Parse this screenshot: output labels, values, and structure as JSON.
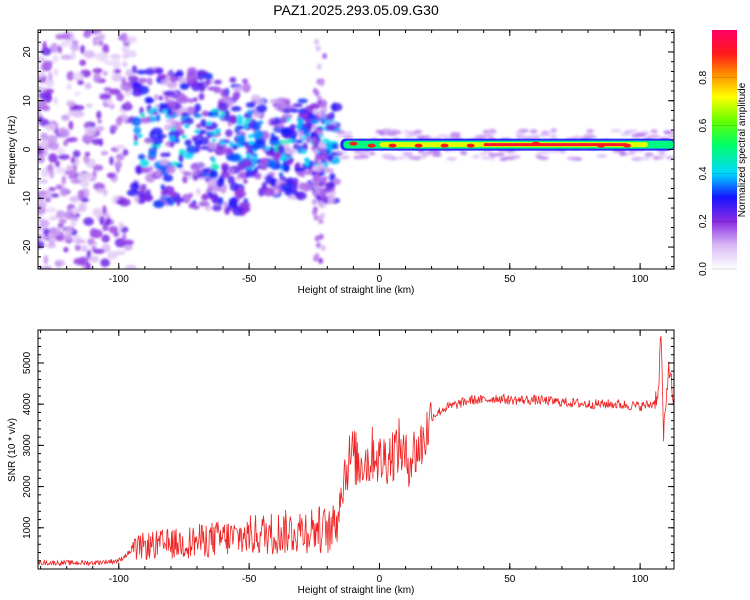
{
  "figure_title": "PAZ1.2025.293.05.09.G30",
  "chart_data": [
    {
      "type": "heatmap",
      "title": "PAZ1.2025.293.05.09.G30",
      "xlabel": "Height of straight line (km)",
      "ylabel": "Frequency (Hz)",
      "xlim": [
        -131,
        113
      ],
      "ylim": [
        -24.5,
        24.5
      ],
      "xticks": [
        -100,
        -50,
        0,
        50,
        100
      ],
      "xtick_labels": [
        "-100",
        "-50",
        "0",
        "50",
        "100"
      ],
      "yticks": [
        -20,
        -10,
        0,
        10,
        20
      ],
      "ytick_labels": [
        "-20",
        "-10",
        "0",
        "10",
        "20"
      ],
      "colorbar": {
        "label": "Normalized spectral amplitude",
        "range": [
          0,
          1
        ],
        "ticks": [
          0,
          0.2,
          0.4,
          0.6,
          0.8
        ],
        "tick_labels": [
          "0.0",
          "0.2",
          "0.4",
          "0.6",
          "0.8"
        ]
      },
      "ridge": {
        "description_values": "narrow band near 1 Hz from about -15 km to 113 km",
        "x_start": -15,
        "x_end": 113,
        "freq": 1.0
      }
    },
    {
      "type": "line",
      "xlabel": "Height of straight line (km)",
      "ylabel": "SNR (10 * v/v)",
      "xlim": [
        -131,
        113
      ],
      "ylim": [
        0,
        5800
      ],
      "xticks": [
        -100,
        -50,
        0,
        50,
        100
      ],
      "xtick_labels": [
        "-100",
        "-50",
        "0",
        "50",
        "100"
      ],
      "yticks": [
        1000,
        2000,
        3000,
        4000,
        5000
      ],
      "ytick_labels": [
        "1000",
        "2000",
        "3000",
        "4000",
        "5000"
      ],
      "series": [
        {
          "name": "SNR",
          "color": "#ee2222",
          "x": [
            -131,
            -110,
            -100,
            -95,
            -92,
            -85,
            -75,
            -65,
            -55,
            -45,
            -35,
            -25,
            -18,
            -14,
            -12,
            -10,
            -8,
            -6,
            -4,
            -2,
            0,
            2,
            5,
            8,
            10,
            13,
            16,
            18,
            20,
            25,
            30,
            35,
            40,
            45,
            50,
            60,
            70,
            80,
            90,
            100,
            105,
            107,
            108,
            109,
            110,
            111,
            113
          ],
          "values": [
            150,
            150,
            200,
            450,
            600,
            650,
            700,
            800,
            850,
            950,
            1000,
            1100,
            1000,
            2200,
            2600,
            2800,
            2500,
            2700,
            2600,
            2900,
            2600,
            2700,
            2800,
            3000,
            2600,
            2800,
            3000,
            3300,
            3700,
            3900,
            4000,
            4100,
            4100,
            4150,
            4100,
            4100,
            4050,
            4000,
            4000,
            3950,
            4000,
            4300,
            5800,
            3200,
            4000,
            5000,
            4000
          ]
        }
      ]
    }
  ]
}
